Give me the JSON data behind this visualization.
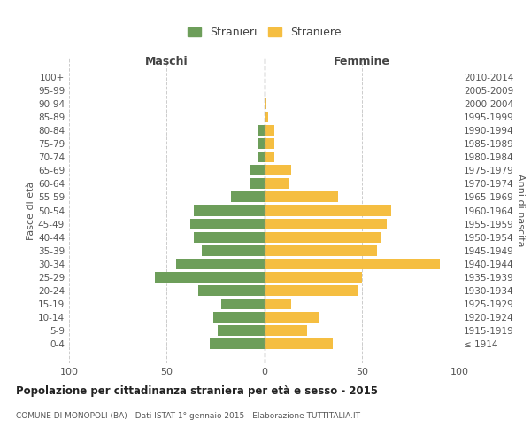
{
  "age_groups": [
    "100+",
    "95-99",
    "90-94",
    "85-89",
    "80-84",
    "75-79",
    "70-74",
    "65-69",
    "60-64",
    "55-59",
    "50-54",
    "45-49",
    "40-44",
    "35-39",
    "30-34",
    "25-29",
    "20-24",
    "15-19",
    "10-14",
    "5-9",
    "0-4"
  ],
  "birth_years": [
    "≤ 1914",
    "1915-1919",
    "1920-1924",
    "1925-1929",
    "1930-1934",
    "1935-1939",
    "1940-1944",
    "1945-1949",
    "1950-1954",
    "1955-1959",
    "1960-1964",
    "1965-1969",
    "1970-1974",
    "1975-1979",
    "1980-1984",
    "1985-1989",
    "1990-1994",
    "1995-1999",
    "2000-2004",
    "2005-2009",
    "2010-2014"
  ],
  "maschi": [
    0,
    0,
    0,
    0,
    3,
    3,
    3,
    7,
    7,
    17,
    36,
    38,
    36,
    32,
    45,
    56,
    34,
    22,
    26,
    24,
    28
  ],
  "femmine": [
    0,
    0,
    1,
    2,
    5,
    5,
    5,
    14,
    13,
    38,
    65,
    63,
    60,
    58,
    90,
    50,
    48,
    14,
    28,
    22,
    35
  ],
  "male_color": "#6d9e5a",
  "female_color": "#f5be41",
  "background_color": "#ffffff",
  "grid_color": "#cccccc",
  "title": "Popolazione per cittadinanza straniera per età e sesso - 2015",
  "subtitle": "COMUNE DI MONOPOLI (BA) - Dati ISTAT 1° gennaio 2015 - Elaborazione TUTTITALIA.IT",
  "xlabel_left": "Maschi",
  "xlabel_right": "Femmine",
  "ylabel_left": "Fasce di età",
  "ylabel_right": "Anni di nascita",
  "legend_male": "Stranieri",
  "legend_female": "Straniere",
  "xlim": 100,
  "bar_height": 0.8
}
